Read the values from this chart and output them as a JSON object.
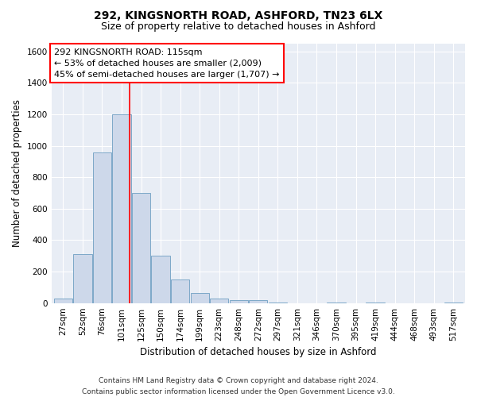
{
  "title": "292, KINGSNORTH ROAD, ASHFORD, TN23 6LX",
  "subtitle": "Size of property relative to detached houses in Ashford",
  "xlabel": "Distribution of detached houses by size in Ashford",
  "ylabel": "Number of detached properties",
  "categories": [
    "27sqm",
    "52sqm",
    "76sqm",
    "101sqm",
    "125sqm",
    "150sqm",
    "174sqm",
    "199sqm",
    "223sqm",
    "248sqm",
    "272sqm",
    "297sqm",
    "321sqm",
    "346sqm",
    "370sqm",
    "395sqm",
    "419sqm",
    "444sqm",
    "468sqm",
    "493sqm",
    "517sqm"
  ],
  "values": [
    30,
    310,
    960,
    1200,
    700,
    300,
    150,
    65,
    30,
    20,
    20,
    5,
    0,
    0,
    5,
    0,
    5,
    0,
    0,
    0,
    5
  ],
  "bar_color": "#cdd8ea",
  "bar_edge_color": "#7da8c8",
  "vline_x": 3.42,
  "vline_color": "red",
  "annotation_text": "292 KINGSNORTH ROAD: 115sqm\n← 53% of detached houses are smaller (2,009)\n45% of semi-detached houses are larger (1,707) →",
  "annotation_box_color": "white",
  "annotation_box_edge": "red",
  "ylim": [
    0,
    1650
  ],
  "yticks": [
    0,
    200,
    400,
    600,
    800,
    1000,
    1200,
    1400,
    1600
  ],
  "footer": "Contains HM Land Registry data © Crown copyright and database right 2024.\nContains public sector information licensed under the Open Government Licence v3.0.",
  "plot_bg_color": "#e8edf5",
  "title_fontsize": 10,
  "subtitle_fontsize": 9,
  "axis_label_fontsize": 8.5,
  "tick_fontsize": 7.5,
  "footer_fontsize": 6.5,
  "annot_fontsize": 8
}
